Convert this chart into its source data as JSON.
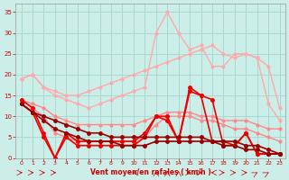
{
  "background_color": "#cceee8",
  "grid_color": "#aad8d0",
  "xlabel": "Vent moyen/en rafales ( km/h )",
  "xlim": [
    -0.5,
    23.5
  ],
  "ylim": [
    0,
    37
  ],
  "yticks": [
    0,
    5,
    10,
    15,
    20,
    25,
    30,
    35
  ],
  "xticks": [
    0,
    1,
    2,
    3,
    4,
    5,
    6,
    7,
    8,
    9,
    10,
    11,
    12,
    13,
    14,
    15,
    16,
    17,
    18,
    19,
    20,
    21,
    22,
    23
  ],
  "series": [
    {
      "x": [
        0,
        1,
        2,
        3,
        4,
        5,
        6,
        7,
        8,
        9,
        10,
        11,
        12,
        13,
        14,
        15,
        16,
        17,
        18,
        19,
        20,
        21,
        22,
        23
      ],
      "y": [
        19,
        20,
        17,
        16,
        15,
        15,
        16,
        17,
        18,
        19,
        20,
        21,
        22,
        23,
        24,
        25,
        26,
        27,
        25,
        24,
        25,
        24,
        22,
        12
      ],
      "color": "#ffaaaa",
      "lw": 1.0,
      "marker": "o",
      "ms": 2.0
    },
    {
      "x": [
        0,
        1,
        2,
        3,
        4,
        5,
        6,
        7,
        8,
        9,
        10,
        11,
        12,
        13,
        14,
        15,
        16,
        17,
        18,
        19,
        20,
        21,
        22,
        23
      ],
      "y": [
        19,
        20,
        17,
        15,
        14,
        13,
        12,
        13,
        14,
        15,
        16,
        17,
        30,
        35,
        30,
        26,
        27,
        22,
        22,
        25,
        25,
        24,
        13,
        9
      ],
      "color": "#ffaaaa",
      "lw": 1.0,
      "marker": "o",
      "ms": 2.0
    },
    {
      "x": [
        0,
        1,
        2,
        3,
        4,
        5,
        6,
        7,
        8,
        9,
        10,
        11,
        12,
        13,
        14,
        15,
        16,
        17,
        18,
        19,
        20,
        21,
        22,
        23
      ],
      "y": [
        14,
        13,
        12,
        10,
        9,
        8,
        8,
        8,
        8,
        8,
        8,
        9,
        10,
        11,
        11,
        11,
        10,
        10,
        9,
        9,
        9,
        8,
        7,
        7
      ],
      "color": "#ff8888",
      "lw": 1.0,
      "marker": "o",
      "ms": 2.0
    },
    {
      "x": [
        0,
        1,
        2,
        3,
        4,
        5,
        6,
        7,
        8,
        9,
        10,
        11,
        12,
        13,
        14,
        15,
        16,
        17,
        18,
        19,
        20,
        21,
        22,
        23
      ],
      "y": [
        14,
        12,
        10,
        6,
        5,
        4,
        4,
        4,
        4,
        4,
        4,
        5,
        8,
        10,
        10,
        10,
        9,
        9,
        8,
        7,
        7,
        6,
        5,
        4
      ],
      "color": "#ff8888",
      "lw": 1.0,
      "marker": "o",
      "ms": 2.0
    },
    {
      "x": [
        0,
        1,
        2,
        3,
        4,
        5,
        6,
        7,
        8,
        9,
        10,
        11,
        12,
        13,
        14,
        15,
        16,
        17,
        18,
        19,
        20,
        21,
        22,
        23
      ],
      "y": [
        14,
        12,
        6,
        0,
        6,
        4,
        4,
        4,
        4,
        4,
        4,
        6,
        10,
        9,
        4,
        16,
        15,
        4,
        4,
        3,
        6,
        1,
        1,
        1
      ],
      "color": "#ee0000",
      "lw": 1.2,
      "marker": "o",
      "ms": 2.5
    },
    {
      "x": [
        0,
        1,
        2,
        3,
        4,
        5,
        6,
        7,
        8,
        9,
        10,
        11,
        12,
        13,
        14,
        15,
        16,
        17,
        18,
        19,
        20,
        21,
        22,
        23
      ],
      "y": [
        13,
        11,
        5,
        0,
        5,
        3,
        3,
        3,
        3,
        3,
        3,
        5,
        10,
        10,
        4,
        17,
        15,
        14,
        3,
        3,
        6,
        1,
        1,
        1
      ],
      "color": "#ee0000",
      "lw": 1.2,
      "marker": "o",
      "ms": 2.5
    },
    {
      "x": [
        0,
        1,
        2,
        3,
        4,
        5,
        6,
        7,
        8,
        9,
        10,
        11,
        12,
        13,
        14,
        15,
        16,
        17,
        18,
        19,
        20,
        21,
        22,
        23
      ],
      "y": [
        13,
        11,
        10,
        9,
        8,
        7,
        6,
        6,
        5,
        5,
        5,
        5,
        5,
        5,
        5,
        5,
        5,
        4,
        4,
        4,
        3,
        3,
        2,
        1
      ],
      "color": "#990000",
      "lw": 1.2,
      "marker": "o",
      "ms": 2.5
    },
    {
      "x": [
        0,
        1,
        2,
        3,
        4,
        5,
        6,
        7,
        8,
        9,
        10,
        11,
        12,
        13,
        14,
        15,
        16,
        17,
        18,
        19,
        20,
        21,
        22,
        23
      ],
      "y": [
        13,
        11,
        9,
        7,
        6,
        5,
        4,
        4,
        4,
        3,
        3,
        3,
        4,
        4,
        4,
        4,
        4,
        4,
        3,
        3,
        2,
        2,
        1,
        1
      ],
      "color": "#990000",
      "lw": 1.2,
      "marker": "o",
      "ms": 2.5
    }
  ]
}
